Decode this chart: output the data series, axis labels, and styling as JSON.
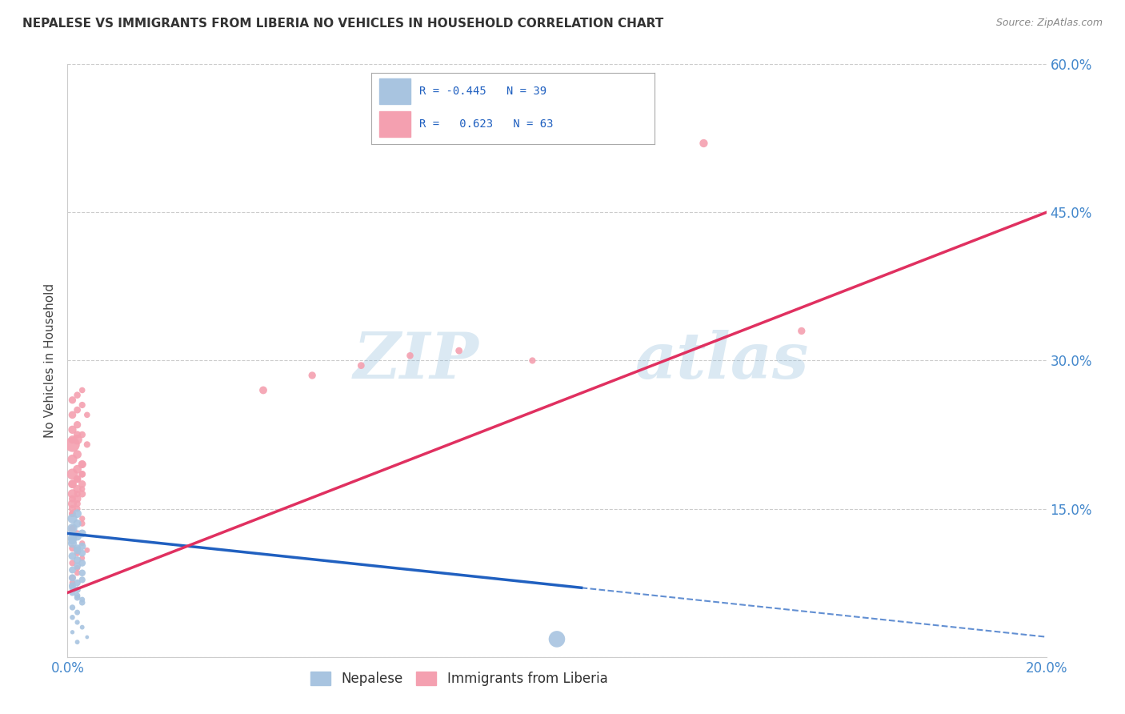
{
  "title": "NEPALESE VS IMMIGRANTS FROM LIBERIA NO VEHICLES IN HOUSEHOLD CORRELATION CHART",
  "source": "Source: ZipAtlas.com",
  "ylabel": "No Vehicles in Household",
  "xlim": [
    0.0,
    0.2
  ],
  "ylim": [
    0.0,
    0.6
  ],
  "x_ticks": [
    0.0,
    0.05,
    0.1,
    0.15,
    0.2
  ],
  "y_ticks": [
    0.0,
    0.15,
    0.3,
    0.45,
    0.6
  ],
  "x_tick_labels": [
    "0.0%",
    "",
    "",
    "",
    "20.0%"
  ],
  "y_tick_labels": [
    "",
    "15.0%",
    "30.0%",
    "45.0%",
    "60.0%"
  ],
  "legend_label1": "Nepalese",
  "legend_label2": "Immigrants from Liberia",
  "nepalese_color": "#a8c4e0",
  "liberia_color": "#f4a0b0",
  "nepalese_line_color": "#2060c0",
  "liberia_line_color": "#e03060",
  "R1": -0.445,
  "N1": 39,
  "R2": 0.623,
  "N2": 63,
  "nepalese_x": [
    0.001,
    0.002,
    0.001,
    0.003,
    0.002,
    0.001,
    0.002,
    0.003,
    0.001,
    0.002,
    0.003,
    0.001,
    0.002,
    0.003,
    0.001,
    0.002,
    0.001,
    0.002,
    0.003,
    0.001,
    0.002,
    0.003,
    0.001,
    0.002,
    0.001,
    0.002,
    0.003,
    0.001,
    0.002,
    0.001,
    0.002,
    0.003,
    0.001,
    0.004,
    0.001,
    0.002,
    0.003,
    0.1,
    0.002
  ],
  "nepalese_y": [
    0.13,
    0.145,
    0.12,
    0.125,
    0.135,
    0.115,
    0.11,
    0.105,
    0.14,
    0.108,
    0.112,
    0.118,
    0.122,
    0.095,
    0.102,
    0.098,
    0.088,
    0.092,
    0.085,
    0.08,
    0.075,
    0.078,
    0.072,
    0.068,
    0.065,
    0.06,
    0.055,
    0.05,
    0.045,
    0.04,
    0.035,
    0.03,
    0.025,
    0.02,
    0.07,
    0.062,
    0.058,
    0.018,
    0.015
  ],
  "nepalese_sizes": [
    80,
    60,
    70,
    50,
    55,
    65,
    45,
    40,
    75,
    50,
    45,
    55,
    60,
    40,
    50,
    45,
    40,
    42,
    38,
    44,
    38,
    35,
    42,
    38,
    35,
    32,
    30,
    28,
    25,
    22,
    20,
    18,
    15,
    12,
    35,
    30,
    25,
    220,
    18
  ],
  "liberia_x": [
    0.001,
    0.002,
    0.001,
    0.002,
    0.003,
    0.001,
    0.002,
    0.003,
    0.001,
    0.002,
    0.003,
    0.001,
    0.002,
    0.003,
    0.001,
    0.002,
    0.001,
    0.002,
    0.003,
    0.001,
    0.002,
    0.003,
    0.004,
    0.001,
    0.002,
    0.003,
    0.004,
    0.001,
    0.002,
    0.003,
    0.001,
    0.002,
    0.003,
    0.001,
    0.002,
    0.001,
    0.002,
    0.003,
    0.001,
    0.002,
    0.003,
    0.004,
    0.001,
    0.002,
    0.003,
    0.04,
    0.05,
    0.06,
    0.07,
    0.001,
    0.002,
    0.003,
    0.001,
    0.002,
    0.001,
    0.002,
    0.003,
    0.001,
    0.13,
    0.001,
    0.15,
    0.08,
    0.095
  ],
  "liberia_y": [
    0.215,
    0.22,
    0.185,
    0.19,
    0.195,
    0.165,
    0.17,
    0.175,
    0.155,
    0.16,
    0.165,
    0.2,
    0.205,
    0.195,
    0.22,
    0.225,
    0.175,
    0.18,
    0.185,
    0.23,
    0.235,
    0.225,
    0.215,
    0.245,
    0.25,
    0.255,
    0.245,
    0.26,
    0.265,
    0.27,
    0.175,
    0.18,
    0.185,
    0.15,
    0.155,
    0.13,
    0.125,
    0.135,
    0.11,
    0.105,
    0.115,
    0.108,
    0.095,
    0.09,
    0.1,
    0.27,
    0.285,
    0.295,
    0.305,
    0.145,
    0.15,
    0.14,
    0.08,
    0.085,
    0.16,
    0.165,
    0.17,
    0.075,
    0.52,
    0.145,
    0.33,
    0.31,
    0.3
  ],
  "liberia_sizes": [
    180,
    80,
    100,
    60,
    50,
    70,
    55,
    45,
    65,
    50,
    42,
    75,
    60,
    50,
    55,
    45,
    60,
    50,
    40,
    55,
    45,
    38,
    35,
    48,
    40,
    35,
    30,
    45,
    38,
    30,
    50,
    42,
    35,
    45,
    38,
    40,
    35,
    30,
    38,
    32,
    28,
    25,
    35,
    28,
    25,
    50,
    45,
    40,
    38,
    40,
    32,
    28,
    35,
    28,
    42,
    35,
    28,
    30,
    55,
    38,
    45,
    40,
    35
  ],
  "watermark_zip": "ZIP",
  "watermark_atlas": "atlas",
  "background_color": "#ffffff",
  "grid_color": "#cccccc"
}
